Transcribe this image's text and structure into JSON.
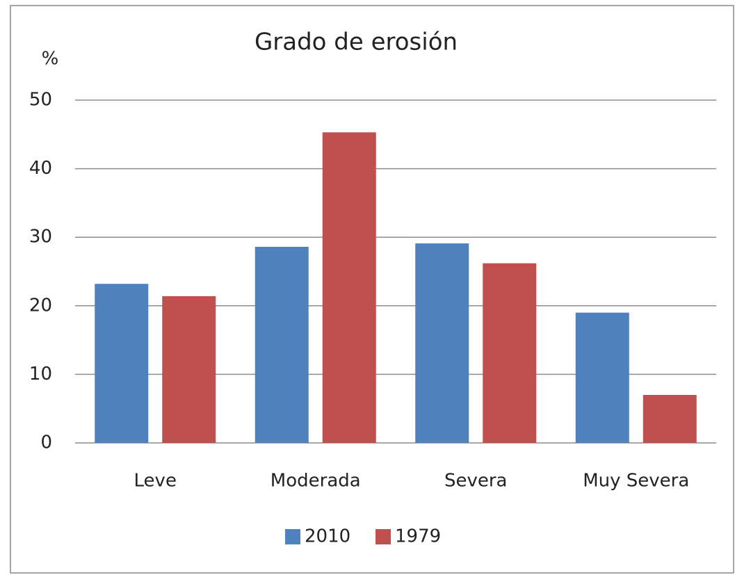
{
  "chart_data": {
    "type": "bar",
    "title": "Grado de erosión",
    "y_label": "%",
    "categories": [
      "Leve",
      "Moderada",
      "Severa",
      "Muy Severa"
    ],
    "series": [
      {
        "name": "2010",
        "color": "#4f81bd",
        "values": [
          23.2,
          28.6,
          29.1,
          19.0
        ]
      },
      {
        "name": "1979",
        "color": "#c0504d",
        "values": [
          21.4,
          45.3,
          26.2,
          7.0
        ]
      }
    ],
    "ylim": [
      0,
      50
    ],
    "yticks": [
      0,
      10,
      20,
      30,
      40,
      50
    ],
    "grid": true,
    "legend": "bottom"
  }
}
